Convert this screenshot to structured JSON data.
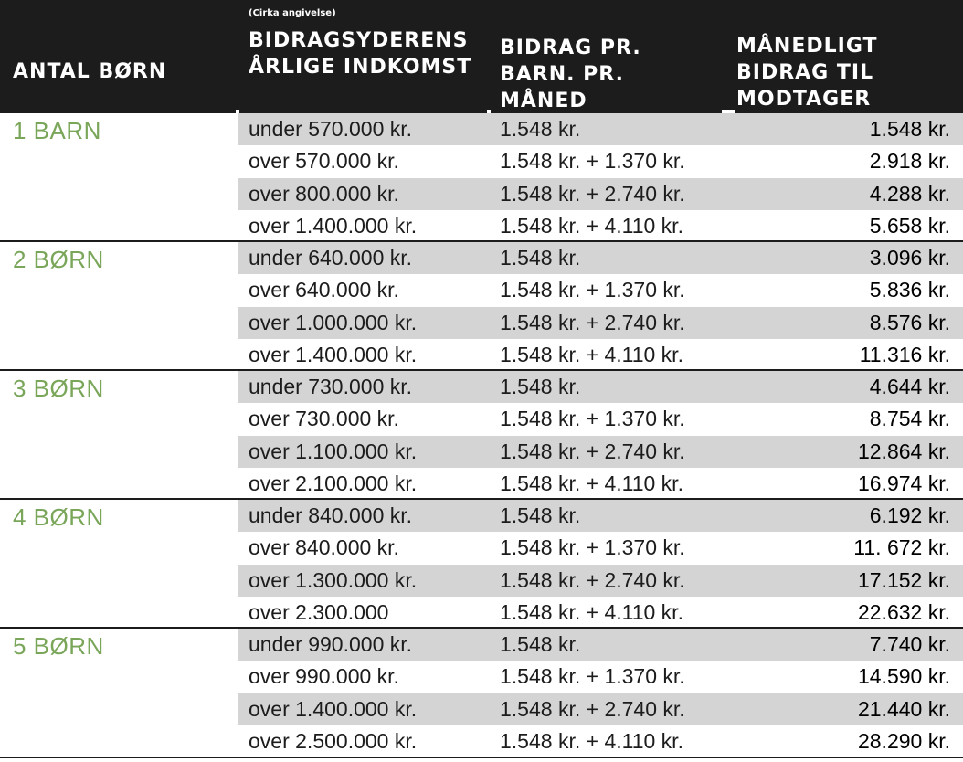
{
  "header": {
    "col_count": "ANTAL BØRN",
    "col_income_note": "(Cirka angivelse)",
    "col_income": "BIDRAGSYDERENS ÅRLIGE INDKOMST",
    "col_per_child": "BIDRAG PR. BARN. PR. MÅNED",
    "col_monthly": "MÅNEDLIGT BIDRAG TIL MODTAGER"
  },
  "groups": [
    {
      "label": "1 BARN",
      "rows": [
        {
          "income": "under 570.000 kr.",
          "per_child": "1.548 kr.",
          "total": "1.548 kr."
        },
        {
          "income": "over 570.000 kr.",
          "per_child": "1.548 kr. + 1.370 kr.",
          "total": "2.918 kr."
        },
        {
          "income": "over 800.000 kr.",
          "per_child": "1.548 kr. + 2.740 kr.",
          "total": "4.288 kr."
        },
        {
          "income": "over 1.400.000 kr.",
          "per_child": "1.548 kr. + 4.110 kr.",
          "total": "5.658 kr."
        }
      ]
    },
    {
      "label": "2 BØRN",
      "rows": [
        {
          "income": "under 640.000 kr.",
          "per_child": "1.548 kr.",
          "total": "3.096 kr."
        },
        {
          "income": "over 640.000 kr.",
          "per_child": "1.548 kr. + 1.370 kr.",
          "total": "5.836 kr."
        },
        {
          "income": "over 1.000.000 kr.",
          "per_child": "1.548 kr. + 2.740 kr.",
          "total": "8.576 kr."
        },
        {
          "income": "over 1.400.000 kr.",
          "per_child": "1.548 kr. + 4.110 kr.",
          "total": "11.316 kr."
        }
      ]
    },
    {
      "label": "3 BØRN",
      "rows": [
        {
          "income": "under 730.000 kr.",
          "per_child": "1.548 kr.",
          "total": "4.644 kr."
        },
        {
          "income": "over 730.000 kr.",
          "per_child": "1.548 kr. + 1.370 kr.",
          "total": "8.754 kr."
        },
        {
          "income": "over 1.100.000 kr.",
          "per_child": "1.548 kr. + 2.740 kr.",
          "total": "12.864 kr."
        },
        {
          "income": "over 2.100.000 kr.",
          "per_child": "1.548 kr. + 4.110 kr.",
          "total": "16.974 kr."
        }
      ]
    },
    {
      "label": "4 BØRN",
      "rows": [
        {
          "income": "under 840.000 kr.",
          "per_child": "1.548 kr.",
          "total": "6.192 kr."
        },
        {
          "income": "over 840.000 kr.",
          "per_child": "1.548 kr. + 1.370 kr.",
          "total": "11. 672 kr."
        },
        {
          "income": "over 1.300.000 kr.",
          "per_child": "1.548 kr. + 2.740 kr.",
          "total": "17.152 kr."
        },
        {
          "income": "over 2.300.000",
          "per_child": "1.548 kr. + 4.110 kr.",
          "total": "22.632 kr."
        }
      ]
    },
    {
      "label": "5 BØRN",
      "rows": [
        {
          "income": "under 990.000 kr.",
          "per_child": "1.548 kr.",
          "total": "7.740 kr."
        },
        {
          "income": "over 990.000 kr.",
          "per_child": "1.548 kr. + 1.370 kr.",
          "total": "14.590 kr."
        },
        {
          "income": "over 1.400.000 kr.",
          "per_child": "1.548 kr. + 2.740 kr.",
          "total": "21.440 kr."
        },
        {
          "income": "over 2.500.000 kr.",
          "per_child": "1.548 kr. + 4.110 kr.",
          "total": "28.290 kr."
        }
      ]
    }
  ],
  "colors": {
    "header_bg": "#1c1c1c",
    "label_green": "#7aa65a",
    "row_shade": "#d4d4d4"
  }
}
